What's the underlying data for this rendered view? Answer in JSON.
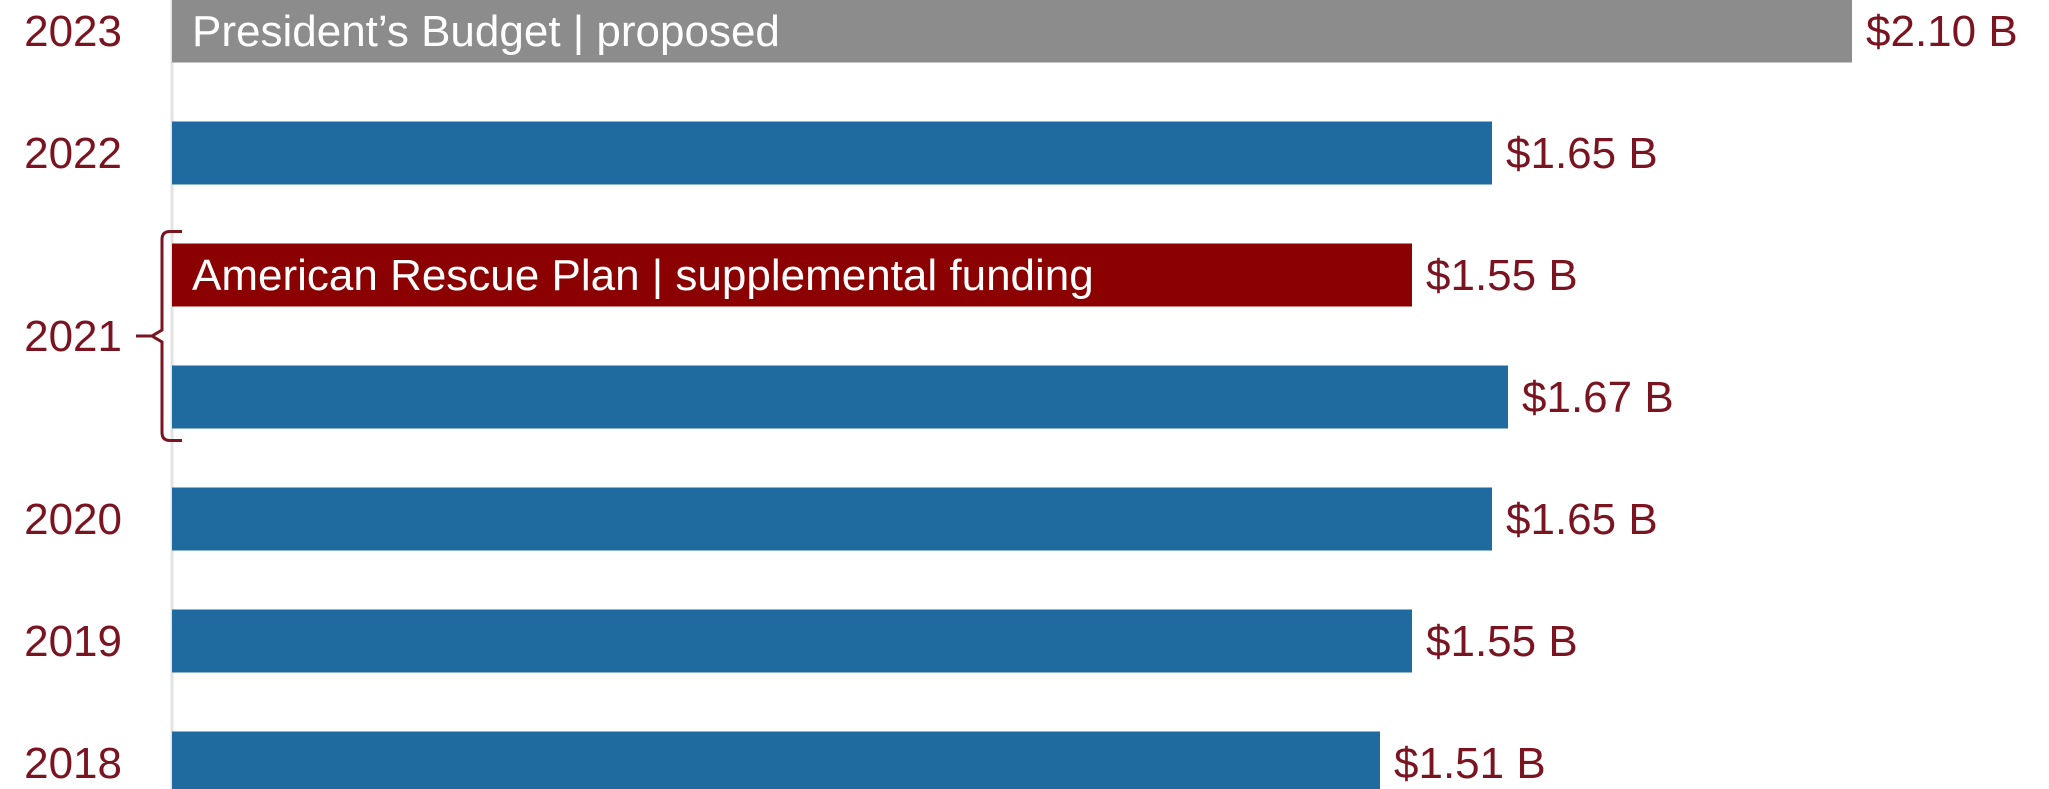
{
  "colors": {
    "regular": "#1f6a9e",
    "proposed": "#8c8c8c",
    "supplemental": "#8b0000",
    "text": "#7a1420",
    "axis": "#e3e3e3"
  },
  "chart_data": {
    "type": "bar",
    "orientation": "horizontal",
    "xlim": [
      0,
      2.1
    ],
    "bars": [
      {
        "year_label": "2023",
        "value": 2.1,
        "value_label": "$2.10 B",
        "kind": "proposed",
        "inner_label": "President’s Budget | proposed"
      },
      {
        "year_label": "2022",
        "value": 1.65,
        "value_label": "$1.65 B",
        "kind": "regular",
        "inner_label": ""
      },
      {
        "year_label": "",
        "value": 1.55,
        "value_label": "$1.55 B",
        "kind": "supplemental",
        "inner_label": "American Rescue Plan | supplemental funding"
      },
      {
        "year_label": "",
        "value": 1.67,
        "value_label": "$1.67 B",
        "kind": "regular",
        "inner_label": ""
      },
      {
        "year_label": "2020",
        "value": 1.65,
        "value_label": "$1.65 B",
        "kind": "regular",
        "inner_label": ""
      },
      {
        "year_label": "2019",
        "value": 1.55,
        "value_label": "$1.55 B",
        "kind": "regular",
        "inner_label": ""
      },
      {
        "year_label": "2018",
        "value": 1.51,
        "value_label": "$1.51 B",
        "kind": "regular",
        "inner_label": ""
      }
    ],
    "groups": [
      {
        "label": "2021",
        "bar_indices": [
          2,
          3
        ]
      }
    ]
  }
}
